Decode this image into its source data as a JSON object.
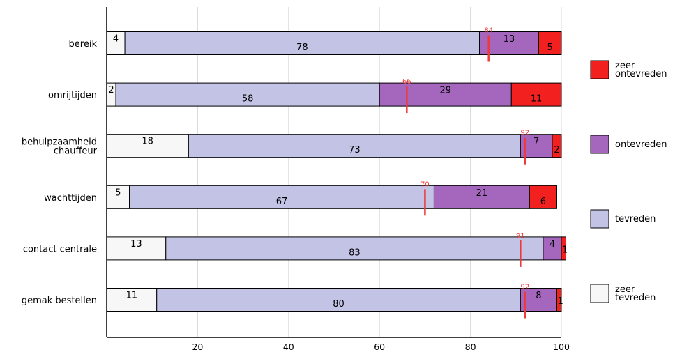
{
  "chart_data": {
    "type": "bar",
    "orientation": "horizontal",
    "stacked": true,
    "title": "",
    "xlabel": "",
    "ylabel": "",
    "xlim": [
      0,
      100
    ],
    "xticks": [
      20,
      40,
      60,
      80,
      100
    ],
    "grid": true,
    "legend_position": "right",
    "categories": [
      "bereik",
      "omrijtijden",
      "behulpzaamheid chauffeur",
      "wachttijden",
      "contact centrale",
      "gemak bestellen"
    ],
    "category_lines": [
      [
        "bereik"
      ],
      [
        "omrijtijden"
      ],
      [
        "behulpzaamheid",
        "chauffeur"
      ],
      [
        "wachttijden"
      ],
      [
        "contact centrale"
      ],
      [
        "gemak bestellen"
      ]
    ],
    "series": [
      {
        "name": "zeer tevreden",
        "legend_lines": [
          "zeer",
          "tevreden"
        ],
        "color": "#f7f7f7",
        "values": [
          4,
          2,
          18,
          5,
          13,
          11
        ]
      },
      {
        "name": "tevreden",
        "legend_lines": [
          "tevreden"
        ],
        "color": "#c3c3e6",
        "values": [
          78,
          58,
          73,
          67,
          83,
          80
        ]
      },
      {
        "name": "ontevreden",
        "legend_lines": [
          "ontevreden"
        ],
        "color": "#a567bd",
        "values": [
          13,
          29,
          7,
          21,
          4,
          8
        ]
      },
      {
        "name": "zeer ontevreden",
        "legend_lines": [
          "zeer",
          "ontevreden"
        ],
        "color": "#f32020",
        "values": [
          5,
          11,
          2,
          6,
          1,
          1
        ]
      }
    ],
    "legend_order": [
      "zeer ontevreden",
      "ontevreden",
      "tevreden",
      "zeer tevreden"
    ],
    "markers": {
      "color": "#ee3a3a",
      "values": [
        84,
        66,
        92,
        70,
        91,
        92
      ]
    }
  }
}
